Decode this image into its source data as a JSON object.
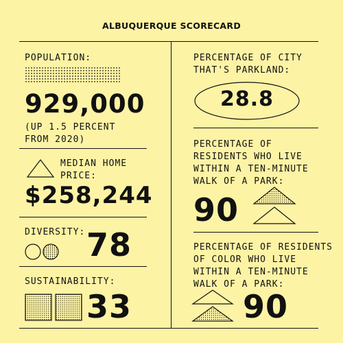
{
  "title": "ALBUQUERQUE SCORECARD",
  "population": {
    "label": "POPULATION:",
    "value": "929,000",
    "note": "(UP 1.5 PERCENT\nFROM 2020)"
  },
  "home_price": {
    "label": "MEDIAN HOME\nPRICE:",
    "value": "$258,244"
  },
  "diversity": {
    "label": "DIVERSITY:",
    "value": "78"
  },
  "sustainability": {
    "label": "SUSTAINABILITY:",
    "value": "33"
  },
  "parkland": {
    "label": "PERCENTAGE OF CITY\nTHAT'S PARKLAND:",
    "value": "28.8"
  },
  "park_walk": {
    "label": "PERCENTAGE OF\nRESIDENTS WHO LIVE\nWITHIN A TEN-MINUTE\nWALK OF A PARK:",
    "value": "90"
  },
  "color_park_walk": {
    "label": "PERCENTAGE OF RESIDENTS\nOF COLOR WHO LIVE\nWITHIN A TEN-MINUTE\nWALK OF A PARK:",
    "value": "90"
  }
}
